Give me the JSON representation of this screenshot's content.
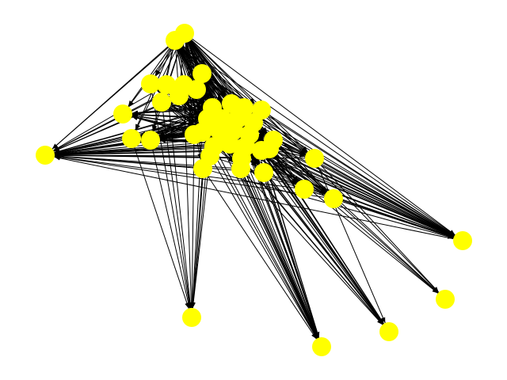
{
  "diagram": {
    "type": "directed-graph",
    "node_color": "#ffff00",
    "edge_color": "#000000",
    "background": "#ffffff",
    "labels_shown": false,
    "node_count": 46
  }
}
